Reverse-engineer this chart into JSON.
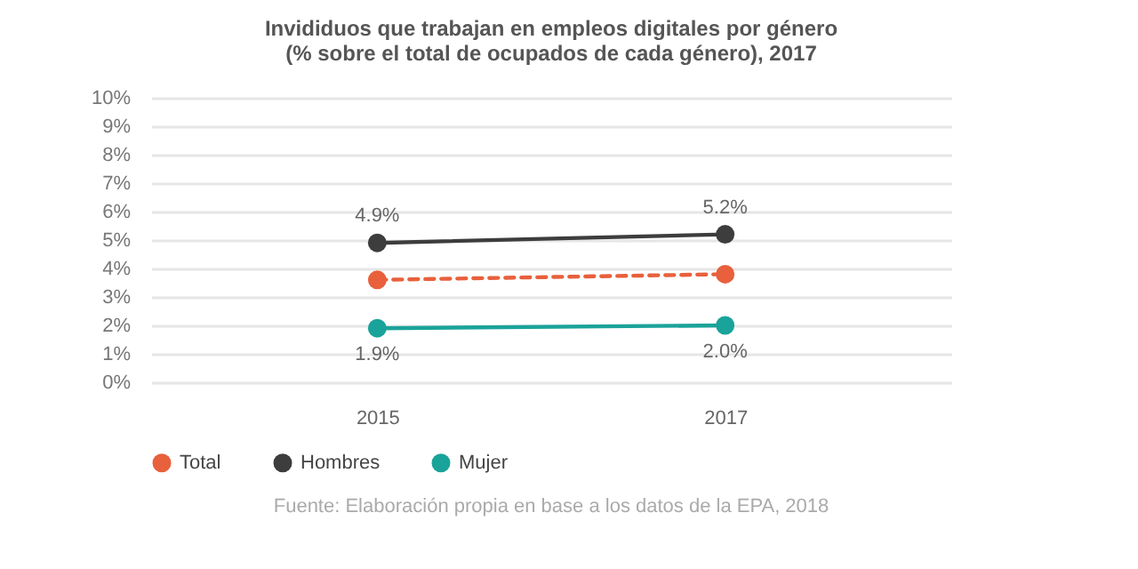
{
  "chart_data": {
    "type": "line",
    "title": "Invididuos que trabajan en empleos digitales por género\n(% sobre el total de ocupados de cada género), 2017",
    "categories": [
      "2015",
      "2017"
    ],
    "series": [
      {
        "name": "Total",
        "color": "#e8603c",
        "line_style": "dashed",
        "values": [
          3.6,
          3.8
        ]
      },
      {
        "name": "Hombres",
        "color": "#3d3d3d",
        "line_style": "solid",
        "values": [
          4.9,
          5.2
        ],
        "value_labels": [
          "4.9%",
          "5.2%"
        ]
      },
      {
        "name": "Mujer",
        "color": "#1aa39a",
        "line_style": "solid",
        "values": [
          1.9,
          2.0
        ],
        "value_labels": [
          "1.9%",
          "2.0%"
        ]
      }
    ],
    "ylim": [
      0,
      10
    ],
    "yticks": [
      {
        "value": 0,
        "label": "0%"
      },
      {
        "value": 1,
        "label": "1%"
      },
      {
        "value": 2,
        "label": "2%"
      },
      {
        "value": 3,
        "label": "3%"
      },
      {
        "value": 4,
        "label": "4%"
      },
      {
        "value": 5,
        "label": "5%"
      },
      {
        "value": 6,
        "label": "6%"
      },
      {
        "value": 7,
        "label": "7%"
      },
      {
        "value": 8,
        "label": "8%"
      },
      {
        "value": 9,
        "label": "9%"
      },
      {
        "value": 10,
        "label": "10%"
      }
    ],
    "grid": "y",
    "legend": "bottom",
    "marker": "circle",
    "annotations": [
      "Fuente: Elaboración propia en base a los datos de la EPA, 2018"
    ]
  }
}
